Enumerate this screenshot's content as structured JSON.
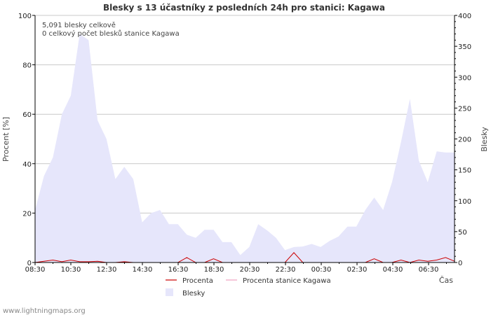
{
  "chart_data": {
    "type": "area",
    "title": "Blesky s 13 účastníky z posledních 24h pro stanici: Kagawa",
    "ylabel_left": "Procent   [%]",
    "ylabel_right": "Blesky",
    "xlabel": "Čas",
    "ylim_left": [
      0,
      100
    ],
    "ylim_right": [
      0,
      400
    ],
    "yticks_left": [
      "0",
      "20",
      "40",
      "60",
      "80",
      "100"
    ],
    "yticks_right": [
      "0",
      "50",
      "100",
      "150",
      "200",
      "250",
      "300",
      "350",
      "400"
    ],
    "xtick_labels": [
      "08:30",
      "10:30",
      "12:30",
      "14:30",
      "16:30",
      "18:30",
      "20:30",
      "22:30",
      "00:30",
      "02:30",
      "04:30",
      "06:30"
    ],
    "annotations": [
      "5,091 blesky celkově",
      "0 celkový počet blesků stanice Kagawa"
    ],
    "series": [
      {
        "name": "Blesky",
        "axis": "right",
        "color": "#e6e6fb",
        "values": [
          85,
          140,
          170,
          240,
          270,
          370,
          360,
          230,
          200,
          135,
          155,
          135,
          65,
          80,
          85,
          62,
          62,
          45,
          40,
          53,
          53,
          33,
          33,
          12,
          25,
          62,
          52,
          40,
          20,
          25,
          26,
          30,
          25,
          35,
          42,
          58,
          58,
          85,
          105,
          85,
          130,
          195,
          265,
          165,
          130,
          180,
          178,
          178
        ]
      },
      {
        "name": "Procenta",
        "axis": "left",
        "color": "#cc0000",
        "values": [
          0,
          0.5,
          1,
          0.3,
          1,
          0.3,
          0.3,
          0.5,
          0,
          0,
          0.3,
          0,
          0,
          0,
          0,
          0,
          0,
          2,
          0,
          0,
          1.5,
          0,
          0,
          0,
          0,
          0,
          0,
          0,
          0,
          4,
          0,
          0,
          0,
          0,
          0,
          0,
          0,
          0,
          1.5,
          0,
          0,
          1,
          0,
          1,
          0.5,
          1,
          2,
          0.5
        ]
      },
      {
        "name": "Procenta stanice Kagawa",
        "axis": "left",
        "color": "#f0a0c0",
        "values": []
      }
    ],
    "legend": [
      "Procenta",
      "Procenta stanice Kagawa",
      "Blesky"
    ]
  },
  "footer": {
    "credit": "www.lightningmaps.org"
  }
}
